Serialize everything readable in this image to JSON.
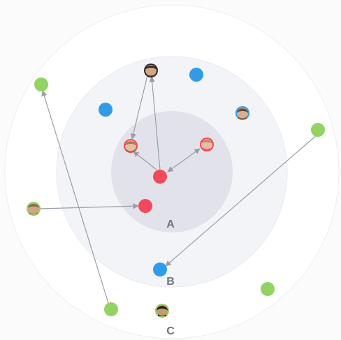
{
  "ring_labels": {
    "inner": "A",
    "middle": "B",
    "outer": "C"
  },
  "colors": {
    "background": "#fbfbfc",
    "outer_ring": "#ffffff",
    "middle_ring": "#f3f4f8",
    "inner_ring": "#e2e3ea",
    "label": "#6f7585",
    "red": "#f5475c",
    "blue": "#2f9ceb",
    "green": "#93d461",
    "arrow": "#9a9ea8",
    "skin": "#d7a77f",
    "hair": "#3a2a22"
  },
  "icons": {
    "person_avatar": "person-avatar-icon",
    "dot": "circle-dot-icon"
  }
}
